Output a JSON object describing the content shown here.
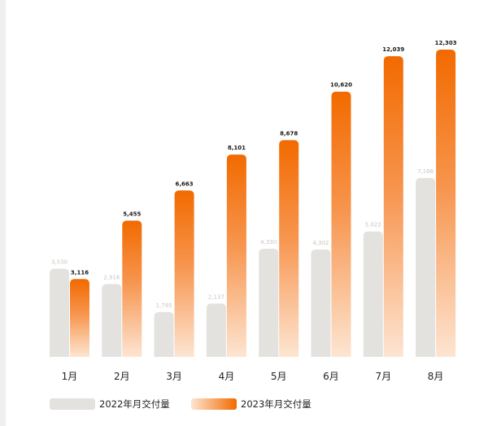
{
  "chart_data": {
    "type": "bar",
    "categories": [
      "1月",
      "2月",
      "3月",
      "4月",
      "5月",
      "6月",
      "7月",
      "8月"
    ],
    "series": [
      {
        "name": "2022年月交付量",
        "values": [
          3530,
          2916,
          1795,
          2137,
          4330,
          4302,
          5022,
          7166
        ],
        "labels": [
          "3,530",
          "2,916",
          "1,795",
          "2,137",
          "4,330",
          "4,302",
          "5,022",
          "7,166"
        ],
        "color": "#e4e2de"
      },
      {
        "name": "2023年月交付量",
        "values": [
          3116,
          5455,
          6663,
          8101,
          8678,
          10620,
          12039,
          12303
        ],
        "labels": [
          "3,116",
          "5,455",
          "6,663",
          "8,101",
          "8,678",
          "10,620",
          "12,039",
          "12,303"
        ],
        "color_top": "#f26a00",
        "color_bottom": "#fde5d2"
      }
    ],
    "ylim": [
      0,
      12303
    ],
    "grid": false,
    "legend_position": "bottom-left"
  }
}
